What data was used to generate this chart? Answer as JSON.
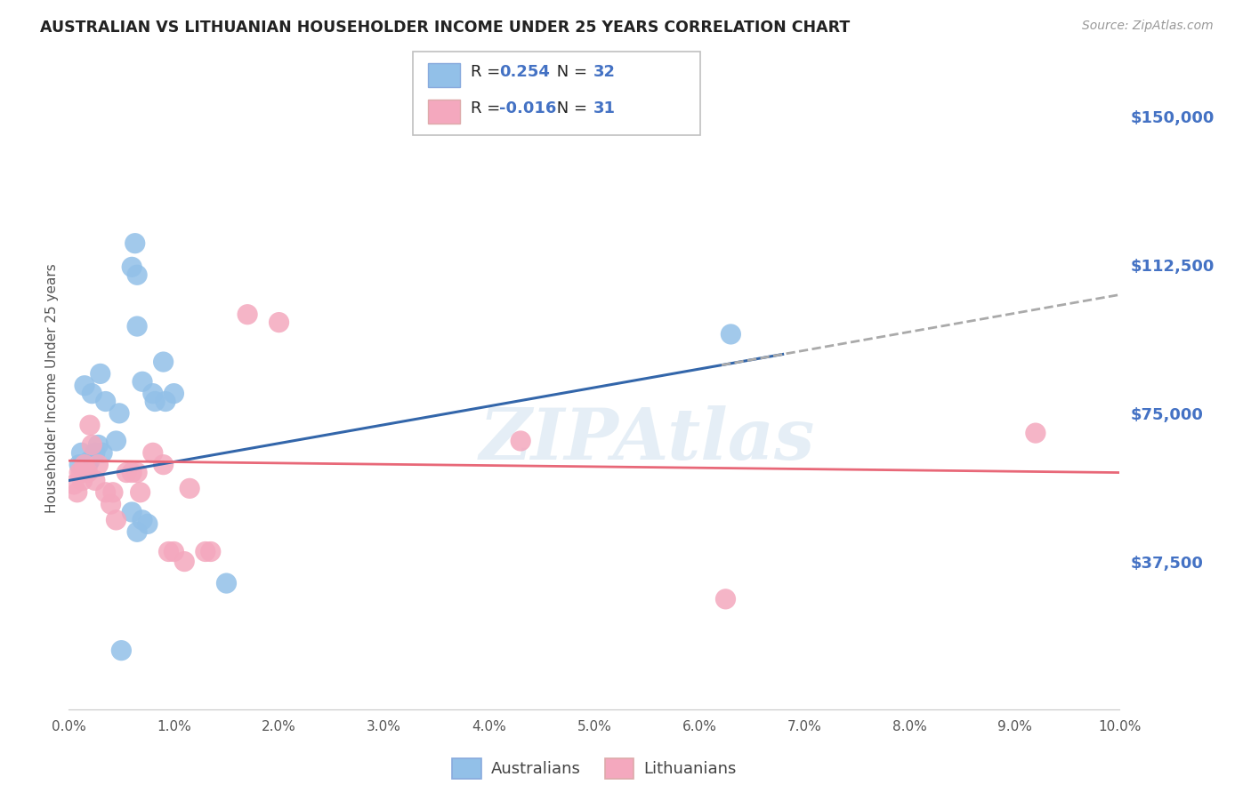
{
  "title": "AUSTRALIAN VS LITHUANIAN HOUSEHOLDER INCOME UNDER 25 YEARS CORRELATION CHART",
  "source": "Source: ZipAtlas.com",
  "ylabel": "Householder Income Under 25 years",
  "y_ticks": [
    0,
    37500,
    75000,
    112500,
    150000
  ],
  "y_tick_labels": [
    "",
    "$37,500",
    "$75,000",
    "$112,500",
    "$150,000"
  ],
  "xlim": [
    0.0,
    0.1
  ],
  "ylim": [
    0,
    162500
  ],
  "background_color": "#ffffff",
  "grid_color": "#c8c8c8",
  "watermark": "ZIPAtlas",
  "aus_color": "#92c0e8",
  "lit_color": "#f4a8be",
  "aus_line_color": "#3366aa",
  "lit_line_color": "#e86878",
  "dashed_line_color": "#aaaaaa",
  "aus_scatter": [
    [
      0.001,
      62000
    ],
    [
      0.0012,
      65000
    ],
    [
      0.0015,
      82000
    ],
    [
      0.0018,
      62000
    ],
    [
      0.002,
      63000
    ],
    [
      0.0022,
      80000
    ],
    [
      0.0025,
      65000
    ],
    [
      0.0028,
      67000
    ],
    [
      0.003,
      85000
    ],
    [
      0.0032,
      65000
    ],
    [
      0.0035,
      78000
    ],
    [
      0.0045,
      68000
    ],
    [
      0.0048,
      75000
    ],
    [
      0.006,
      112000
    ],
    [
      0.0063,
      118000
    ],
    [
      0.0065,
      110000
    ],
    [
      0.0065,
      97000
    ],
    [
      0.007,
      83000
    ],
    [
      0.008,
      80000
    ],
    [
      0.0082,
      78000
    ],
    [
      0.009,
      88000
    ],
    [
      0.0092,
      78000
    ],
    [
      0.01,
      80000
    ],
    [
      0.006,
      50000
    ],
    [
      0.007,
      48000
    ],
    [
      0.0065,
      45000
    ],
    [
      0.0075,
      47000
    ],
    [
      0.015,
      32000
    ],
    [
      0.063,
      95000
    ],
    [
      0.005,
      15000
    ]
  ],
  "lit_scatter": [
    [
      0.0005,
      57000
    ],
    [
      0.0008,
      55000
    ],
    [
      0.001,
      60000
    ],
    [
      0.0012,
      60000
    ],
    [
      0.0013,
      58000
    ],
    [
      0.0015,
      62000
    ],
    [
      0.0018,
      60000
    ],
    [
      0.002,
      72000
    ],
    [
      0.0022,
      67000
    ],
    [
      0.0025,
      58000
    ],
    [
      0.0028,
      62000
    ],
    [
      0.0035,
      55000
    ],
    [
      0.004,
      52000
    ],
    [
      0.0042,
      55000
    ],
    [
      0.0045,
      48000
    ],
    [
      0.0055,
      60000
    ],
    [
      0.006,
      60000
    ],
    [
      0.0065,
      60000
    ],
    [
      0.0068,
      55000
    ],
    [
      0.008,
      65000
    ],
    [
      0.009,
      62000
    ],
    [
      0.0095,
      40000
    ],
    [
      0.01,
      40000
    ],
    [
      0.011,
      37500
    ],
    [
      0.0115,
      56000
    ],
    [
      0.013,
      40000
    ],
    [
      0.0135,
      40000
    ],
    [
      0.017,
      100000
    ],
    [
      0.02,
      98000
    ],
    [
      0.043,
      68000
    ],
    [
      0.092,
      70000
    ],
    [
      0.0625,
      28000
    ]
  ]
}
